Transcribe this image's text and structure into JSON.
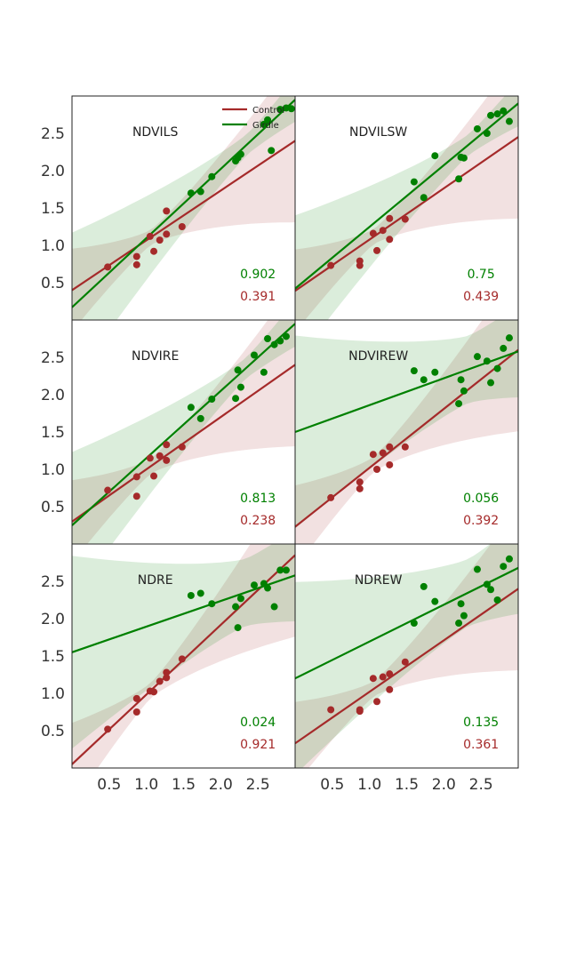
{
  "colors": {
    "control": "#a52a2a",
    "girdle": "#008000"
  },
  "legend": {
    "placement": "top-right of first panel",
    "items": [
      {
        "label": "Control",
        "color": "#a52a2a"
      },
      {
        "label": "Girdle",
        "color": "#008000"
      }
    ]
  },
  "axes": {
    "x_ticks": [
      "0.5",
      "1.0",
      "1.5",
      "2.0",
      "2.5"
    ],
    "y_ticks": [
      "0.5",
      "1.0",
      "1.5",
      "2.0",
      "2.5"
    ],
    "xlim": [
      0.0,
      3.0
    ],
    "ylim": [
      0.0,
      3.0
    ],
    "grid": false
  },
  "chart_data": [
    {
      "type": "scatter",
      "title": "NDVILS",
      "girdle_r2": "0.902",
      "control_r2": "0.391",
      "series": [
        {
          "name": "Control",
          "x": [
            0.48,
            0.87,
            0.87,
            1.05,
            1.1,
            1.18,
            1.27,
            1.27,
            1.48
          ],
          "y": [
            0.71,
            0.74,
            0.85,
            1.12,
            0.92,
            1.07,
            1.15,
            1.46,
            1.25
          ],
          "fit": [
            0.4,
            2.4
          ]
        },
        {
          "name": "Girdle",
          "x": [
            1.6,
            1.73,
            1.88,
            2.2,
            2.23,
            2.27,
            2.58,
            2.63,
            2.68,
            2.8,
            2.88,
            2.95
          ],
          "y": [
            1.7,
            1.72,
            1.92,
            2.13,
            2.17,
            2.22,
            2.62,
            2.68,
            2.27,
            2.82,
            2.84,
            2.83
          ],
          "fit": [
            0.17,
            2.95
          ]
        }
      ]
    },
    {
      "type": "scatter",
      "title": "NDVILSW",
      "girdle_r2": "0.75",
      "control_r2": "0.439",
      "series": [
        {
          "name": "Control",
          "x": [
            0.48,
            0.87,
            0.87,
            1.05,
            1.1,
            1.18,
            1.27,
            1.27,
            1.48
          ],
          "y": [
            0.73,
            0.73,
            0.79,
            1.16,
            0.93,
            1.2,
            1.36,
            1.08,
            1.35
          ],
          "fit": [
            0.39,
            2.45
          ]
        },
        {
          "name": "Girdle",
          "x": [
            1.6,
            1.73,
            1.88,
            2.2,
            2.23,
            2.27,
            2.45,
            2.58,
            2.63,
            2.72,
            2.8,
            2.88
          ],
          "y": [
            1.85,
            1.64,
            2.2,
            1.89,
            2.18,
            2.17,
            2.56,
            2.5,
            2.74,
            2.76,
            2.8,
            2.66
          ],
          "fit": [
            0.42,
            2.9
          ]
        }
      ]
    },
    {
      "type": "scatter",
      "title": "NDVIRE",
      "girdle_r2": "0.813",
      "control_r2": "0.238",
      "series": [
        {
          "name": "Control",
          "x": [
            0.48,
            0.87,
            0.87,
            1.05,
            1.1,
            1.18,
            1.27,
            1.27,
            1.48
          ],
          "y": [
            0.72,
            0.64,
            0.9,
            1.15,
            0.91,
            1.18,
            1.33,
            1.12,
            1.3
          ],
          "fit": [
            0.3,
            2.4
          ]
        },
        {
          "name": "Girdle",
          "x": [
            1.6,
            1.73,
            1.88,
            2.2,
            2.23,
            2.27,
            2.45,
            2.58,
            2.63,
            2.72,
            2.8,
            2.88
          ],
          "y": [
            1.83,
            1.68,
            1.94,
            1.95,
            2.33,
            2.1,
            2.53,
            2.3,
            2.75,
            2.67,
            2.72,
            2.78
          ],
          "fit": [
            0.25,
            2.95
          ]
        }
      ]
    },
    {
      "type": "scatter",
      "title": "NDVIREW",
      "girdle_r2": "0.056",
      "control_r2": "0.392",
      "series": [
        {
          "name": "Control",
          "x": [
            0.48,
            0.87,
            0.87,
            1.05,
            1.1,
            1.18,
            1.27,
            1.27,
            1.48
          ],
          "y": [
            0.62,
            0.74,
            0.83,
            1.2,
            1.0,
            1.22,
            1.3,
            1.06,
            1.3
          ],
          "fit": [
            0.23,
            2.6
          ]
        },
        {
          "name": "Girdle",
          "x": [
            1.6,
            1.73,
            1.88,
            2.2,
            2.23,
            2.27,
            2.45,
            2.58,
            2.63,
            2.72,
            2.8,
            2.88
          ],
          "y": [
            2.32,
            2.2,
            2.3,
            1.88,
            2.2,
            2.05,
            2.51,
            2.45,
            2.16,
            2.35,
            2.62,
            2.76
          ],
          "fit": [
            1.5,
            2.58
          ]
        }
      ]
    },
    {
      "type": "scatter",
      "title": "NDRE",
      "girdle_r2": "0.024",
      "control_r2": "0.921",
      "series": [
        {
          "name": "Control",
          "x": [
            0.48,
            0.87,
            0.87,
            1.05,
            1.1,
            1.18,
            1.27,
            1.27,
            1.48
          ],
          "y": [
            0.52,
            0.75,
            0.93,
            1.03,
            1.02,
            1.16,
            1.28,
            1.21,
            1.46
          ],
          "fit": [
            0.05,
            2.85
          ]
        },
        {
          "name": "Girdle",
          "x": [
            1.6,
            1.73,
            1.88,
            2.2,
            2.23,
            2.27,
            2.45,
            2.58,
            2.63,
            2.72,
            2.8,
            2.88
          ],
          "y": [
            2.31,
            2.34,
            2.2,
            2.16,
            1.88,
            2.27,
            2.45,
            2.47,
            2.41,
            2.16,
            2.65,
            2.65
          ],
          "fit": [
            1.55,
            2.58
          ]
        }
      ]
    },
    {
      "type": "scatter",
      "title": "NDREW",
      "girdle_r2": "0.135",
      "control_r2": "0.361",
      "series": [
        {
          "name": "Control",
          "x": [
            0.48,
            0.87,
            0.87,
            1.05,
            1.1,
            1.18,
            1.27,
            1.27,
            1.48
          ],
          "y": [
            0.78,
            0.78,
            0.76,
            1.2,
            0.89,
            1.22,
            1.26,
            1.05,
            1.42
          ],
          "fit": [
            0.33,
            2.4
          ]
        },
        {
          "name": "Girdle",
          "x": [
            1.6,
            1.73,
            1.88,
            2.2,
            2.23,
            2.27,
            2.45,
            2.58,
            2.63,
            2.72,
            2.8,
            2.88
          ],
          "y": [
            1.94,
            2.43,
            2.23,
            1.94,
            2.2,
            2.04,
            2.66,
            2.46,
            2.39,
            2.25,
            2.7,
            2.8
          ],
          "fit": [
            1.2,
            2.68
          ]
        }
      ]
    }
  ]
}
